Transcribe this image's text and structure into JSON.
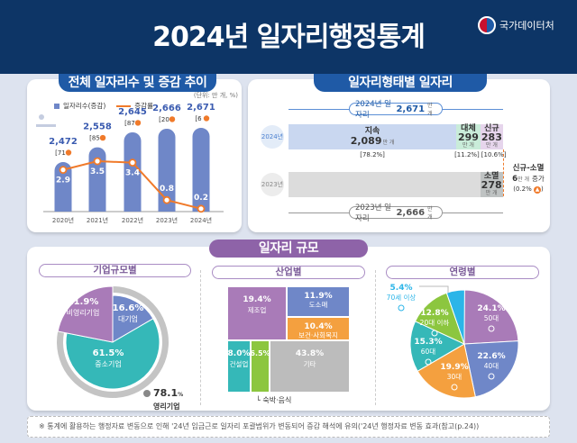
{
  "header": {
    "title": "2024년 일자리행정통계",
    "logo_text": "국가데이터처"
  },
  "trend": {
    "title": "전체 일자리수 및 증감 추이",
    "unit": "(단위: 만 개, %)",
    "legend_bar": "일자리수(증감)",
    "legend_line": "증감률"
  },
  "forms": {
    "title": "일자리형태별 일자리",
    "year_2024": "2024년",
    "year_2023": "2023년",
    "total_2024_label": "2024년 일자리",
    "total_2024": "2,671",
    "total_2023_label": "2023년 일자리",
    "total_2023": "2,666",
    "unit": "만 개",
    "diff_label": "신규-소멸",
    "diff_value": "6",
    "diff_suffix": "증가",
    "diff_pct": "(0.2%"
  },
  "size": {
    "title": "일자리 규모",
    "enterprise_title": "기업규모별",
    "industry_title": "산업별",
    "age_title": "연령별",
    "profit_pct": "78.1",
    "profit_label": "영리기업",
    "lodging_note": "└ 숙박·음식"
  },
  "footnote": "※ 통계에 활용하는 행정자료 변동으로 인해 '24년 임금근로 일자리 포괄범위가 변동되어 증감 해석에 유의('24년 행정자료 변동 효과(참고(p.24))",
  "colors": {
    "navy": "#0d3566",
    "blue": "#6f87c8",
    "orange": "#f4a03f",
    "purple": "#a97bb8",
    "teal": "#35b8b8",
    "green": "#8cc63f",
    "gray": "#b9b9b9",
    "lightblue": "#2bb5e8"
  },
  "chart_data": [
    {
      "type": "bar",
      "title": "전체 일자리수 및 증감 추이",
      "unit": "(단위: 만 개, %)",
      "categories": [
        "2020년",
        "2021년",
        "2022년",
        "2023년",
        "2024년"
      ],
      "series": [
        {
          "name": "일자리수(증감)",
          "values": [
            2472,
            2558,
            2645,
            2666,
            2671
          ],
          "value_labels": [
            "2,472",
            "2,558",
            "2,645",
            "2,666",
            "2,671"
          ],
          "change": [
            71,
            85,
            87,
            20,
            6
          ],
          "change_labels": [
            "[71",
            "[85",
            "[87",
            "[20",
            "[6"
          ]
        },
        {
          "name": "증감률",
          "type": "line",
          "values": [
            2.9,
            3.5,
            3.4,
            0.8,
            0.2
          ],
          "value_labels": [
            "2.9",
            "3.5",
            "3.4",
            "0.8",
            "0.2"
          ]
        }
      ]
    },
    {
      "type": "bar",
      "orientation": "horizontal",
      "stacked": true,
      "title": "일자리형태별 일자리",
      "unit": "만 개",
      "rows": [
        {
          "year": "2024년",
          "total": 2671,
          "segments": [
            {
              "name": "지속",
              "value": 2089,
              "label": "2,089",
              "pct": "[78.2%]"
            },
            {
              "name": "대체",
              "value": 299,
              "label": "299",
              "pct": "[11.2%]"
            },
            {
              "name": "신규",
              "value": 283,
              "label": "283",
              "pct": "[10.6%]"
            }
          ]
        },
        {
          "year": "2023년",
          "total": 2666,
          "segments": [
            {
              "name": "",
              "value": 2388,
              "label": ""
            },
            {
              "name": "소멸",
              "value": 278,
              "label": "278"
            }
          ]
        }
      ]
    },
    {
      "type": "pie",
      "title": "기업규모별",
      "slices": [
        {
          "name": "대기업",
          "value": 16.6,
          "label": "16.6%"
        },
        {
          "name": "중소기업",
          "value": 61.5,
          "label": "61.5%"
        },
        {
          "name": "비영리기업",
          "value": 21.9,
          "label": "21.9%"
        }
      ],
      "ring": {
        "name": "영리기업",
        "value": 78.1
      }
    },
    {
      "type": "heatmap",
      "subtype": "treemap",
      "title": "산업별",
      "cells": [
        {
          "name": "제조업",
          "value": 19.4,
          "label": "19.4%"
        },
        {
          "name": "도소매",
          "value": 11.9,
          "label": "11.9%"
        },
        {
          "name": "보건·사회복지",
          "value": 10.4,
          "label": "10.4%"
        },
        {
          "name": "건설업",
          "value": 8.0,
          "label": "8.0%"
        },
        {
          "name": "숙박·음식",
          "value": 6.5,
          "label": "6.5%"
        },
        {
          "name": "기타",
          "value": 43.8,
          "label": "43.8%"
        }
      ]
    },
    {
      "type": "pie",
      "title": "연령별",
      "slices": [
        {
          "name": "50대",
          "value": 24.1,
          "label": "24.1%"
        },
        {
          "name": "40대",
          "value": 22.6,
          "label": "22.6%"
        },
        {
          "name": "30대",
          "value": 19.9,
          "label": "19.9%"
        },
        {
          "name": "60대",
          "value": 15.3,
          "label": "15.3%"
        },
        {
          "name": "20대 이하",
          "value": 12.8,
          "label": "12.8%"
        },
        {
          "name": "70세 이상",
          "value": 5.4,
          "label": "5.4%"
        }
      ]
    }
  ]
}
